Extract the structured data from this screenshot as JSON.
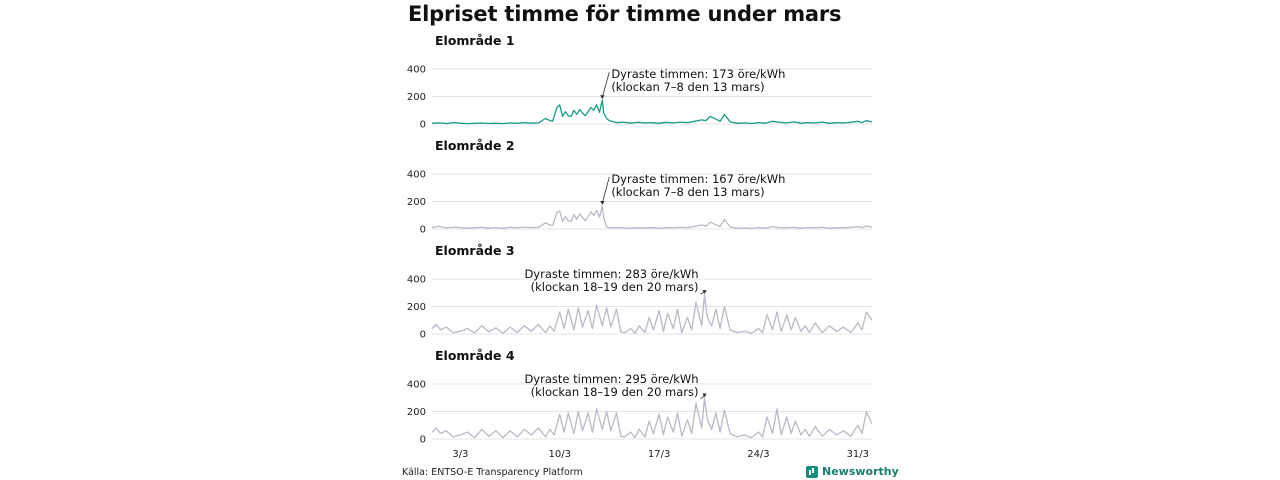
{
  "title": "Elpriset timme för timme under mars",
  "source": "Källa: ENTSO-E Transparency Platform",
  "brand": "Newsworthy",
  "colors": {
    "highlight": "#1a9b8a",
    "other": "#b9b9c9",
    "grid": "#e3e3e3"
  },
  "chart_data": [
    {
      "type": "line",
      "title": "Elområde 1",
      "color": "#1a9b8a",
      "ylim": [
        0,
        400
      ],
      "yticks": [
        0,
        200,
        400
      ],
      "xlim": [
        1,
        32
      ],
      "xticks": [
        {
          "value": 3,
          "label": "3/3"
        },
        {
          "value": 10,
          "label": "10/3"
        },
        {
          "value": 17,
          "label": "17/3"
        },
        {
          "value": 24,
          "label": "24/3"
        },
        {
          "value": 31,
          "label": "31/3"
        }
      ],
      "x": [
        1,
        1.5,
        2,
        2.5,
        3,
        3.5,
        4,
        4.5,
        5,
        5.5,
        6,
        6.5,
        7,
        7.5,
        8,
        8.5,
        9,
        9.3,
        9.5,
        9.8,
        10,
        10.2,
        10.4,
        10.6,
        10.8,
        11,
        11.2,
        11.4,
        11.6,
        11.8,
        12,
        12.2,
        12.4,
        12.6,
        12.8,
        13,
        13.1,
        13.3,
        13.5,
        14,
        14.5,
        15,
        15.5,
        16,
        16.5,
        17,
        17.5,
        18,
        18.5,
        19,
        19.5,
        20,
        20.3,
        20.6,
        21,
        21.3,
        21.6,
        22,
        22.5,
        23,
        23.5,
        24,
        24.5,
        25,
        25.5,
        26,
        26.5,
        27,
        27.5,
        28,
        28.5,
        29,
        29.5,
        30,
        30.5,
        31,
        31.3,
        31.6,
        32
      ],
      "values": [
        5,
        8,
        4,
        10,
        6,
        3,
        5,
        7,
        4,
        6,
        3,
        8,
        5,
        10,
        6,
        8,
        40,
        25,
        20,
        120,
        140,
        55,
        90,
        60,
        55,
        100,
        70,
        105,
        80,
        60,
        90,
        120,
        100,
        140,
        85,
        173,
        80,
        40,
        25,
        10,
        14,
        6,
        12,
        8,
        10,
        5,
        12,
        8,
        14,
        10,
        20,
        30,
        25,
        55,
        35,
        20,
        70,
        15,
        5,
        8,
        4,
        10,
        6,
        20,
        12,
        8,
        15,
        6,
        10,
        8,
        14,
        5,
        10,
        8,
        12,
        20,
        10,
        25,
        15
      ],
      "annotation": {
        "line1": "Dyraste timmen: 173 öre/kWh",
        "line2": "(klockan 7–8 den 13 mars)",
        "x": 13,
        "y": 173,
        "align": "start"
      }
    },
    {
      "type": "line",
      "title": "Elområde 2",
      "color": "#b9b9c9",
      "ylim": [
        0,
        400
      ],
      "yticks": [
        0,
        200,
        400
      ],
      "xlim": [
        1,
        32
      ],
      "xticks": [
        {
          "value": 3,
          "label": "3/3"
        },
        {
          "value": 10,
          "label": "10/3"
        },
        {
          "value": 17,
          "label": "17/3"
        },
        {
          "value": 24,
          "label": "24/3"
        },
        {
          "value": 31,
          "label": "31/3"
        }
      ],
      "x": [
        1,
        1.5,
        2,
        2.5,
        3,
        3.5,
        4,
        4.5,
        5,
        5.5,
        6,
        6.5,
        7,
        7.5,
        8,
        8.5,
        9,
        9.3,
        9.5,
        9.8,
        10,
        10.2,
        10.4,
        10.6,
        10.8,
        11,
        11.2,
        11.4,
        11.6,
        11.8,
        12,
        12.2,
        12.4,
        12.6,
        12.8,
        13,
        13.1,
        13.3,
        13.5,
        14,
        14.5,
        15,
        15.5,
        16,
        16.5,
        17,
        17.5,
        18,
        18.5,
        19,
        19.5,
        20,
        20.3,
        20.6,
        21,
        21.3,
        21.6,
        22,
        22.5,
        23,
        23.5,
        24,
        24.5,
        25,
        25.5,
        26,
        26.5,
        27,
        27.5,
        28,
        28.5,
        29,
        29.5,
        30,
        30.5,
        31,
        31.3,
        31.6,
        32
      ],
      "values": [
        10,
        20,
        8,
        14,
        10,
        6,
        9,
        12,
        6,
        10,
        5,
        12,
        8,
        14,
        10,
        12,
        45,
        30,
        25,
        120,
        130,
        55,
        90,
        60,
        55,
        105,
        70,
        110,
        85,
        60,
        90,
        125,
        100,
        135,
        85,
        167,
        80,
        15,
        8,
        10,
        8,
        6,
        9,
        8,
        10,
        5,
        10,
        8,
        12,
        10,
        18,
        30,
        20,
        50,
        30,
        18,
        70,
        15,
        5,
        8,
        4,
        10,
        6,
        18,
        10,
        8,
        12,
        6,
        10,
        8,
        12,
        5,
        10,
        8,
        12,
        18,
        10,
        22,
        12
      ],
      "annotation": {
        "line1": "Dyraste timmen: 167 öre/kWh",
        "line2": "(klockan 7–8 den 13 mars)",
        "x": 13,
        "y": 167,
        "align": "start"
      }
    },
    {
      "type": "line",
      "title": "Elområde 3",
      "color": "#b9b9c9",
      "ylim": [
        0,
        400
      ],
      "yticks": [
        0,
        200,
        400
      ],
      "xlim": [
        1,
        32
      ],
      "xticks": [
        {
          "value": 3,
          "label": "3/3"
        },
        {
          "value": 10,
          "label": "10/3"
        },
        {
          "value": 17,
          "label": "17/3"
        },
        {
          "value": 24,
          "label": "24/3"
        },
        {
          "value": 31,
          "label": "31/3"
        }
      ],
      "x": [
        1,
        1.3,
        1.6,
        2,
        2.5,
        3,
        3.5,
        4,
        4.5,
        5,
        5.5,
        6,
        6.5,
        7,
        7.5,
        8,
        8.5,
        9,
        9.3,
        9.6,
        10,
        10.3,
        10.6,
        11,
        11.3,
        11.6,
        12,
        12.3,
        12.6,
        13,
        13.3,
        13.6,
        14,
        14.3,
        14.6,
        15,
        15.3,
        15.6,
        16,
        16.3,
        16.6,
        17,
        17.3,
        17.6,
        18,
        18.3,
        18.6,
        19,
        19.3,
        19.6,
        20,
        20.2,
        20.4,
        20.7,
        21,
        21.3,
        21.6,
        22,
        22.5,
        23,
        23.5,
        24,
        24.3,
        24.6,
        25,
        25.3,
        25.6,
        26,
        26.3,
        26.6,
        27,
        27.3,
        27.6,
        28,
        28.5,
        29,
        29.5,
        30,
        30.5,
        31,
        31.3,
        31.6,
        32
      ],
      "values": [
        40,
        70,
        30,
        50,
        10,
        20,
        40,
        8,
        60,
        15,
        45,
        5,
        50,
        10,
        60,
        20,
        70,
        10,
        60,
        20,
        160,
        40,
        180,
        30,
        190,
        50,
        170,
        40,
        210,
        60,
        190,
        50,
        180,
        15,
        10,
        40,
        5,
        60,
        10,
        120,
        30,
        170,
        20,
        150,
        40,
        180,
        10,
        120,
        30,
        230,
        60,
        283,
        120,
        60,
        180,
        40,
        200,
        30,
        10,
        20,
        5,
        40,
        10,
        140,
        30,
        160,
        20,
        140,
        30,
        120,
        20,
        60,
        10,
        80,
        10,
        60,
        20,
        50,
        10,
        80,
        30,
        160,
        100
      ],
      "annotation": {
        "line1": "Dyraste timmen: 283 öre/kWh",
        "line2": "(klockan 18–19 den 20 mars)",
        "x": 20.2,
        "y": 283,
        "align": "end"
      }
    },
    {
      "type": "line",
      "title": "Elområde 4",
      "color": "#b9b9c9",
      "ylim": [
        0,
        400
      ],
      "yticks": [
        0,
        200,
        400
      ],
      "xlim": [
        1,
        32
      ],
      "xticks": [
        {
          "value": 3,
          "label": "3/3"
        },
        {
          "value": 10,
          "label": "10/3"
        },
        {
          "value": 17,
          "label": "17/3"
        },
        {
          "value": 24,
          "label": "24/3"
        },
        {
          "value": 31,
          "label": "31/3"
        }
      ],
      "x": [
        1,
        1.3,
        1.6,
        2,
        2.5,
        3,
        3.5,
        4,
        4.5,
        5,
        5.5,
        6,
        6.5,
        7,
        7.5,
        8,
        8.5,
        9,
        9.3,
        9.6,
        10,
        10.3,
        10.6,
        11,
        11.3,
        11.6,
        12,
        12.3,
        12.6,
        13,
        13.3,
        13.6,
        14,
        14.3,
        14.6,
        15,
        15.3,
        15.6,
        16,
        16.3,
        16.6,
        17,
        17.3,
        17.6,
        18,
        18.3,
        18.6,
        19,
        19.3,
        19.6,
        20,
        20.2,
        20.4,
        20.7,
        21,
        21.3,
        21.6,
        22,
        22.5,
        23,
        23.5,
        24,
        24.3,
        24.6,
        25,
        25.3,
        25.6,
        26,
        26.3,
        26.6,
        27,
        27.3,
        27.6,
        28,
        28.5,
        29,
        29.5,
        30,
        30.5,
        31,
        31.3,
        31.6,
        32
      ],
      "values": [
        50,
        80,
        40,
        60,
        15,
        30,
        50,
        10,
        70,
        20,
        60,
        10,
        60,
        15,
        70,
        30,
        80,
        15,
        70,
        30,
        180,
        50,
        190,
        40,
        200,
        60,
        190,
        50,
        220,
        70,
        200,
        60,
        190,
        20,
        15,
        50,
        10,
        70,
        15,
        130,
        40,
        180,
        30,
        160,
        50,
        190,
        20,
        140,
        40,
        260,
        80,
        295,
        140,
        70,
        190,
        50,
        210,
        40,
        15,
        30,
        10,
        50,
        15,
        160,
        40,
        220,
        30,
        160,
        40,
        130,
        30,
        70,
        20,
        90,
        20,
        70,
        30,
        60,
        20,
        100,
        40,
        200,
        110
      ],
      "annotation": {
        "line1": "Dyraste timmen: 295 öre/kWh",
        "line2": "(klockan 18–19 den 20 mars)",
        "x": 20.2,
        "y": 295,
        "align": "end"
      }
    }
  ]
}
